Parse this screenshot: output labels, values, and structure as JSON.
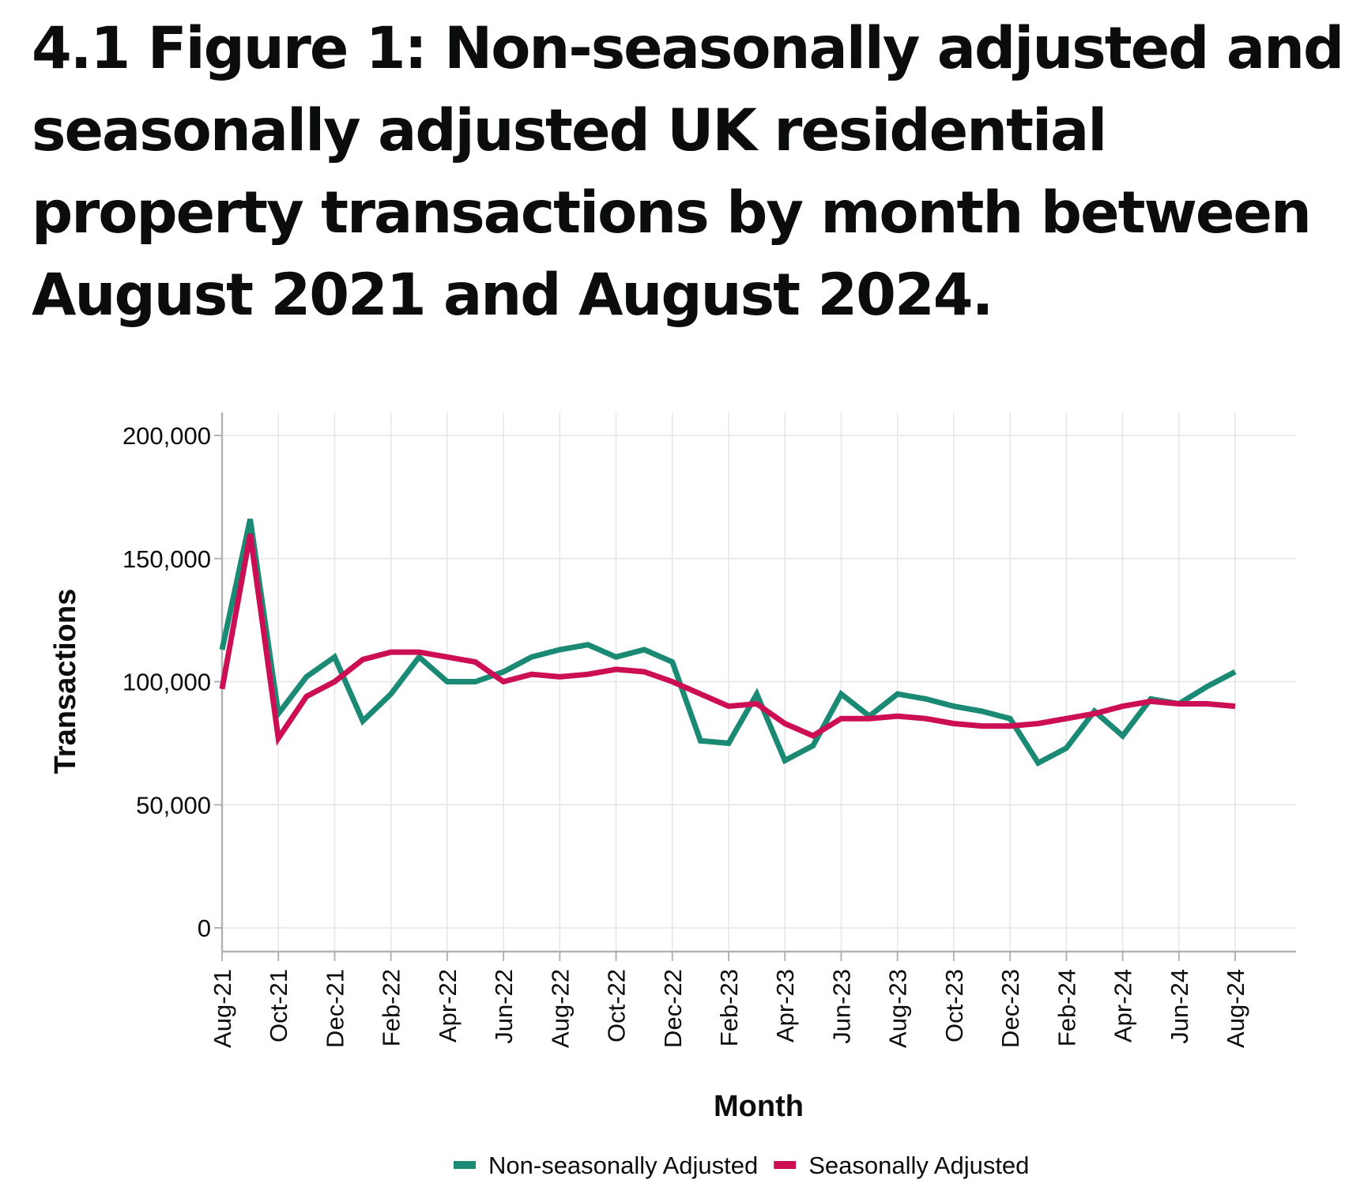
{
  "chart_data": {
    "type": "line",
    "title": "4.1 Figure 1: Non-seasonally adjusted and seasonally adjusted UK residential property transactions by month between August 2021 and August 2024.",
    "xlabel": "Month",
    "ylabel": "Transactions",
    "ylim": [
      0,
      200000
    ],
    "yticks": [
      0,
      50000,
      100000,
      150000,
      200000
    ],
    "ytick_labels": [
      "0",
      "50,000",
      "100,000",
      "150,000",
      "200,000"
    ],
    "grid": true,
    "legend_position": "bottom",
    "x": [
      "Aug-21",
      "Sep-21",
      "Oct-21",
      "Nov-21",
      "Dec-21",
      "Jan-22",
      "Feb-22",
      "Mar-22",
      "Apr-22",
      "May-22",
      "Jun-22",
      "Jul-22",
      "Aug-22",
      "Sep-22",
      "Oct-22",
      "Nov-22",
      "Dec-22",
      "Jan-23",
      "Feb-23",
      "Mar-23",
      "Apr-23",
      "May-23",
      "Jun-23",
      "Jul-23",
      "Aug-23",
      "Sep-23",
      "Oct-23",
      "Nov-23",
      "Dec-23",
      "Jan-24",
      "Feb-24",
      "Mar-24",
      "Apr-24",
      "May-24",
      "Jun-24",
      "Jul-24",
      "Aug-24"
    ],
    "xtick_labels": [
      "Aug-21",
      "Oct-21",
      "Dec-21",
      "Feb-22",
      "Apr-22",
      "Jun-22",
      "Aug-22",
      "Oct-22",
      "Dec-22",
      "Feb-23",
      "Apr-23",
      "Jun-23",
      "Aug-23",
      "Oct-23",
      "Dec-23",
      "Feb-24",
      "Apr-24",
      "Jun-24",
      "Aug-24"
    ],
    "series": [
      {
        "name": "Non-seasonally Adjusted",
        "color": "#1b8a74",
        "values": [
          113000,
          166000,
          87000,
          102000,
          110000,
          84000,
          95000,
          110000,
          100000,
          100000,
          104000,
          110000,
          113000,
          115000,
          110000,
          113000,
          108000,
          76000,
          75000,
          95000,
          68000,
          74000,
          95000,
          86000,
          95000,
          93000,
          90000,
          88000,
          85000,
          67000,
          73000,
          88000,
          78000,
          93000,
          91000,
          98000,
          104000
        ]
      },
      {
        "name": "Seasonally Adjusted",
        "color": "#cc0f55",
        "values": [
          97000,
          160000,
          77000,
          94000,
          100000,
          109000,
          112000,
          112000,
          110000,
          108000,
          100000,
          103000,
          102000,
          103000,
          105000,
          104000,
          100000,
          95000,
          90000,
          91000,
          83000,
          78000,
          85000,
          85000,
          86000,
          85000,
          83000,
          82000,
          82000,
          83000,
          85000,
          87000,
          90000,
          92000,
          91000,
          91000,
          90000
        ]
      }
    ]
  }
}
